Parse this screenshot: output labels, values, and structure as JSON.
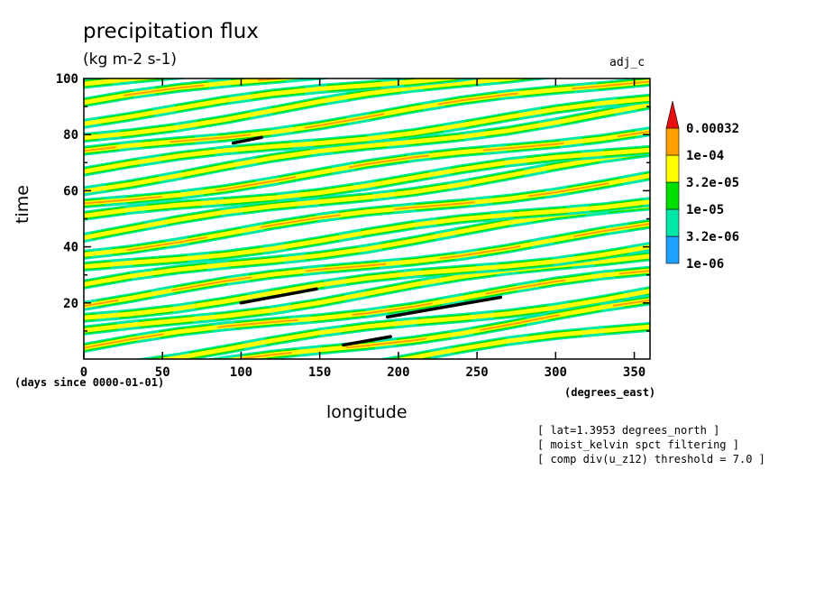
{
  "chart_data": {
    "type": "heatmap",
    "title": "precipitation flux",
    "units": "(kg m-2 s-1)",
    "run_label": "adj_c",
    "xlabel": "longitude",
    "x_units": "(degrees_east)",
    "ylabel": "time",
    "y_units": "(days since 0000-01-01)",
    "xlim": [
      0,
      360
    ],
    "ylim": [
      0,
      100
    ],
    "x_ticks": [
      "0",
      "50",
      "100",
      "150",
      "200",
      "250",
      "300",
      "350"
    ],
    "y_ticks": [
      "20",
      "40",
      "60",
      "80",
      "100"
    ],
    "colorbar": {
      "levels": [
        "1e-06",
        "3.2e-06",
        "1e-05",
        "3.2e-05",
        "1e-04",
        "0.00032"
      ],
      "colors": [
        "#1ea0ff",
        "#00e8a8",
        "#00e000",
        "#ffff00",
        "#ffa000",
        "#e81010"
      ]
    },
    "stripes": [
      {
        "t0": 4,
        "slope": 0.075
      },
      {
        "t0": 9,
        "slope": 0.08
      },
      {
        "t0": 15,
        "slope": 0.07
      },
      {
        "t0": 20,
        "slope": 0.075
      },
      {
        "t0": 26,
        "slope": 0.08
      },
      {
        "t0": 32,
        "slope": 0.07
      },
      {
        "t0": 38,
        "slope": 0.075
      },
      {
        "t0": 44,
        "slope": 0.08
      },
      {
        "t0": 50,
        "slope": 0.07
      },
      {
        "t0": 55,
        "slope": 0.075
      },
      {
        "t0": 61,
        "slope": 0.08
      },
      {
        "t0": 67,
        "slope": 0.07
      },
      {
        "t0": 73,
        "slope": 0.075
      },
      {
        "t0": 79,
        "slope": 0.08
      },
      {
        "t0": 85,
        "slope": 0.07
      },
      {
        "t0": 91,
        "slope": 0.075
      },
      {
        "t0": 97,
        "slope": 0.08
      },
      {
        "t0": -3,
        "slope": 0.075
      },
      {
        "t0": -9,
        "slope": 0.08
      },
      {
        "t0": -15,
        "slope": 0.075
      }
    ],
    "threshold_segments": [
      {
        "x": [
          95,
          113
        ],
        "y": [
          77,
          79
        ]
      },
      {
        "x": [
          100,
          148
        ],
        "y": [
          20,
          25
        ]
      },
      {
        "x": [
          193,
          265
        ],
        "y": [
          15,
          22
        ]
      },
      {
        "x": [
          165,
          195
        ],
        "y": [
          5,
          8
        ]
      }
    ]
  },
  "notes": [
    "[ lat=1.3953 degrees_north ]",
    "[ moist_kelvin spct filtering ]",
    "[ comp div(u_z12) threshold = 7.0 ]"
  ]
}
